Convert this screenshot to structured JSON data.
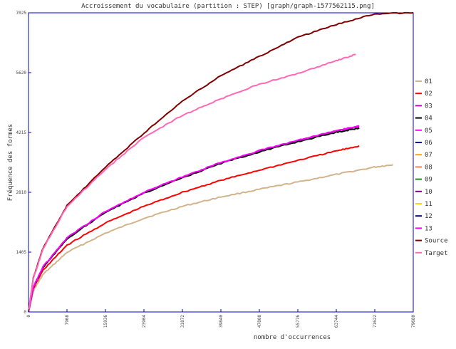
{
  "chart_data": {
    "type": "line",
    "title": "Accroissement du vocabulaire (partition : STEP) [graph/graph-1577562115.png]",
    "xlabel": "nombre d'occurrences",
    "ylabel": "Fréquence des formes",
    "xlim": [
      0,
      79680
    ],
    "ylim": [
      0,
      7025
    ],
    "x_ticks": [
      "0",
      "7968",
      "15936",
      "23904",
      "31872",
      "39840",
      "47808",
      "55776",
      "63744",
      "71622",
      "79680"
    ],
    "y_ticks": [
      "0",
      "1405",
      "2810",
      "4215",
      "5620",
      "7025"
    ],
    "grid": false,
    "legend_position": "right",
    "series": [
      {
        "name": "01",
        "color": "#d2b48c",
        "x": [
          0,
          1000,
          3000,
          7968,
          15936,
          23904,
          31872,
          39840,
          47808,
          55776,
          63744,
          71622,
          75500
        ],
        "y": [
          0,
          500,
          880,
          1400,
          1850,
          2200,
          2480,
          2700,
          2880,
          3050,
          3230,
          3400,
          3460
        ]
      },
      {
        "name": "02",
        "color": "#ff0000",
        "x": [
          0,
          1000,
          3000,
          7968,
          15936,
          23904,
          31872,
          39840,
          47808,
          55776,
          63744,
          68500
        ],
        "y": [
          0,
          550,
          980,
          1570,
          2090,
          2480,
          2810,
          3090,
          3330,
          3560,
          3780,
          3900
        ]
      },
      {
        "name": "03",
        "color": "#cc00cc",
        "x": [
          0,
          1000,
          3000,
          7968,
          15936,
          23904,
          31872,
          39840,
          47808,
          55776,
          63744,
          68500
        ],
        "y": [
          0,
          580,
          1050,
          1730,
          2350,
          2800,
          3160,
          3500,
          3780,
          4020,
          4250,
          4350
        ]
      },
      {
        "name": "04",
        "color": "#000000",
        "x": [
          0,
          1000,
          3000,
          7968,
          15936,
          23904,
          31872,
          39840,
          47808,
          55776,
          63744,
          68500
        ],
        "y": [
          0,
          575,
          1040,
          1720,
          2340,
          2790,
          3150,
          3490,
          3760,
          4000,
          4220,
          4320
        ]
      },
      {
        "name": "05",
        "color": "#ff00ff",
        "x": [
          0,
          1000,
          3000,
          7968,
          15936,
          23904,
          31872,
          39840,
          47808,
          55776,
          63744,
          68500
        ],
        "y": [
          0,
          585,
          1060,
          1740,
          2360,
          2810,
          3170,
          3510,
          3790,
          4030,
          4260,
          4370
        ]
      },
      {
        "name": "Source",
        "color": "#800000",
        "x": [
          0,
          1000,
          3000,
          7968,
          15936,
          23904,
          31872,
          39840,
          47808,
          55776,
          63744,
          71622,
          79680
        ],
        "y": [
          0,
          800,
          1500,
          2500,
          3400,
          4200,
          4950,
          5550,
          6000,
          6450,
          6750,
          7000,
          7025
        ]
      },
      {
        "name": "Target",
        "color": "#ff69b4",
        "x": [
          0,
          1000,
          3000,
          7968,
          15936,
          23904,
          31872,
          39840,
          47808,
          55776,
          63744,
          67800
        ],
        "y": [
          0,
          780,
          1480,
          2480,
          3350,
          4100,
          4620,
          5000,
          5350,
          5600,
          5900,
          6050
        ]
      }
    ]
  },
  "legend": {
    "entries": [
      {
        "label": "01",
        "color": "#d2b48c"
      },
      {
        "label": "02",
        "color": "#ff0000"
      },
      {
        "label": "03",
        "color": "#cc00cc"
      },
      {
        "label": "04",
        "color": "#000000"
      },
      {
        "label": "05",
        "color": "#ff00ff"
      },
      {
        "label": "06",
        "color": "#0000cc"
      },
      {
        "label": "07",
        "color": "#ffa500"
      },
      {
        "label": "08",
        "color": "#ff7f50"
      },
      {
        "label": "09",
        "color": "#228b22"
      },
      {
        "label": "10",
        "color": "#800080"
      },
      {
        "label": "11",
        "color": "#ffd700"
      },
      {
        "label": "12",
        "color": "#000080"
      },
      {
        "label": "13",
        "color": "#ff00ff"
      },
      {
        "label": "Source",
        "color": "#800000"
      },
      {
        "label": "Target",
        "color": "#ff69b4"
      }
    ]
  },
  "colors": {
    "frame": "#0000cc",
    "tick_text": "#444444"
  }
}
